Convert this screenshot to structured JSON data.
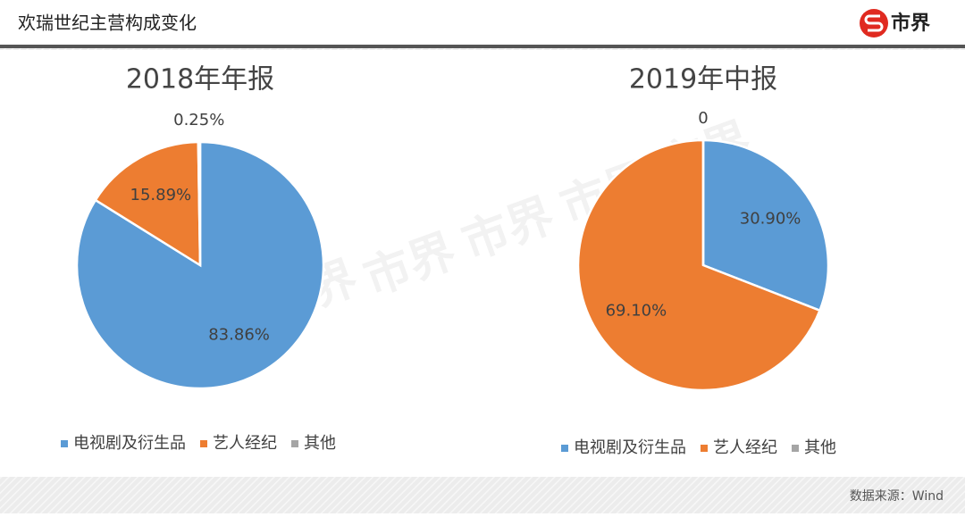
{
  "header": {
    "title": "欢瑞世纪主营构成变化",
    "logo": "市界"
  },
  "source": "数据来源：Wind",
  "chart_data": [
    {
      "type": "pie",
      "title": "2018年年报",
      "categories": [
        "电视剧及衍生品",
        "艺人经纪",
        "其他"
      ],
      "values": [
        83.86,
        15.89,
        0.25
      ],
      "value_labels": [
        "83.86%",
        "15.89%",
        "0.25%"
      ],
      "colors": [
        "#5b9bd5",
        "#ed7d31",
        "#a5a5a5"
      ]
    },
    {
      "type": "pie",
      "title": "2019年中报",
      "categories": [
        "电视剧及衍生品",
        "艺人经纪",
        "其他"
      ],
      "values": [
        30.9,
        69.1,
        0
      ],
      "value_labels": [
        "30.90%",
        "69.10%",
        "0"
      ],
      "colors": [
        "#5b9bd5",
        "#ed7d31",
        "#a5a5a5"
      ]
    }
  ]
}
